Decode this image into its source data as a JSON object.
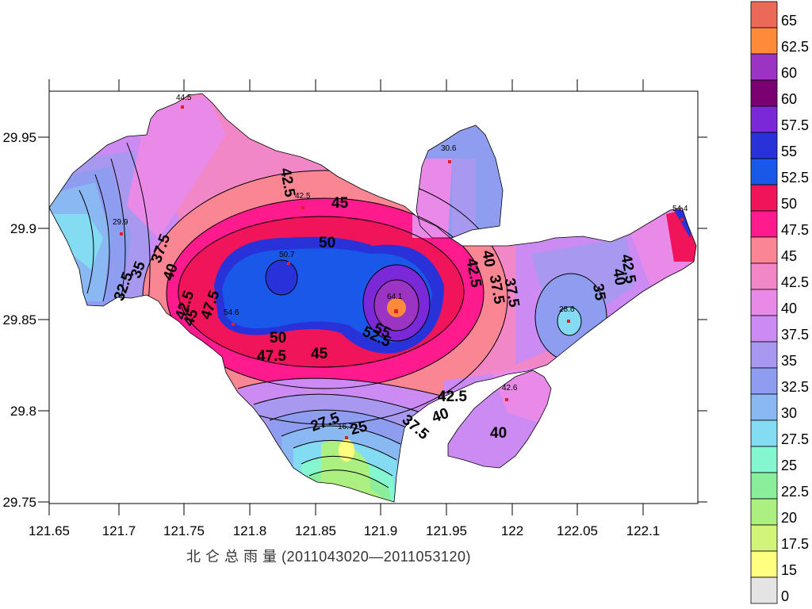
{
  "title": "北 仑 总 雨 量 (2011043020—2011053120)",
  "axes": {
    "x_ticks": [
      "121.65",
      "121.7",
      "121.75",
      "121.8",
      "121.85",
      "121.9",
      "121.95",
      "122",
      "122.05",
      "122.1"
    ],
    "y_ticks": [
      "29.95",
      "29.9",
      "29.85",
      "29.8",
      "29.75"
    ]
  },
  "legend": {
    "labels": [
      "65",
      "62.5",
      "60",
      "60",
      "57.5",
      "55",
      "52.5",
      "50",
      "47.5",
      "45",
      "42.5",
      "40",
      "37.5",
      "35",
      "32.5",
      "30",
      "27.5",
      "25",
      "22.5",
      "20",
      "17.5",
      "15",
      "0"
    ],
    "colors": [
      "#ea6a57",
      "#ff8a3a",
      "#9b34c2",
      "#7a0072",
      "#7a28d8",
      "#2832d8",
      "#1a58ea",
      "#f0155a",
      "#ff1a8e",
      "#f98692",
      "#f287c7",
      "#ea8ae8",
      "#cc8af3",
      "#a898f0",
      "#8e9df0",
      "#8ab8f2",
      "#84dcf2",
      "#84f6d0",
      "#8aee9a",
      "#acf082",
      "#d2f478",
      "#ffff80",
      "#e4e4e4"
    ]
  },
  "stations": [
    {
      "label": "44.5"
    },
    {
      "label": "29.9"
    },
    {
      "label": "42.5"
    },
    {
      "label": "50.7"
    },
    {
      "label": "54.6"
    },
    {
      "label": "64.1"
    },
    {
      "label": "30.6"
    },
    {
      "label": "54.4"
    },
    {
      "label": "28.6"
    },
    {
      "label": "42.6"
    },
    {
      "label": "16.7"
    }
  ],
  "contour_labels": [
    "32.5",
    "35",
    "37.5",
    "40",
    "42.5",
    "45",
    "47.5",
    "50",
    "52.5",
    "55",
    "27.5",
    "25",
    "37.5",
    "40",
    "42.5",
    "37.5",
    "35",
    "40",
    "42.5",
    "40",
    "42.5",
    "45",
    "50",
    "45",
    "47.5",
    "42.5",
    "37.5",
    "40"
  ],
  "icons": {
    "station_marker": "station-marker-icon"
  }
}
